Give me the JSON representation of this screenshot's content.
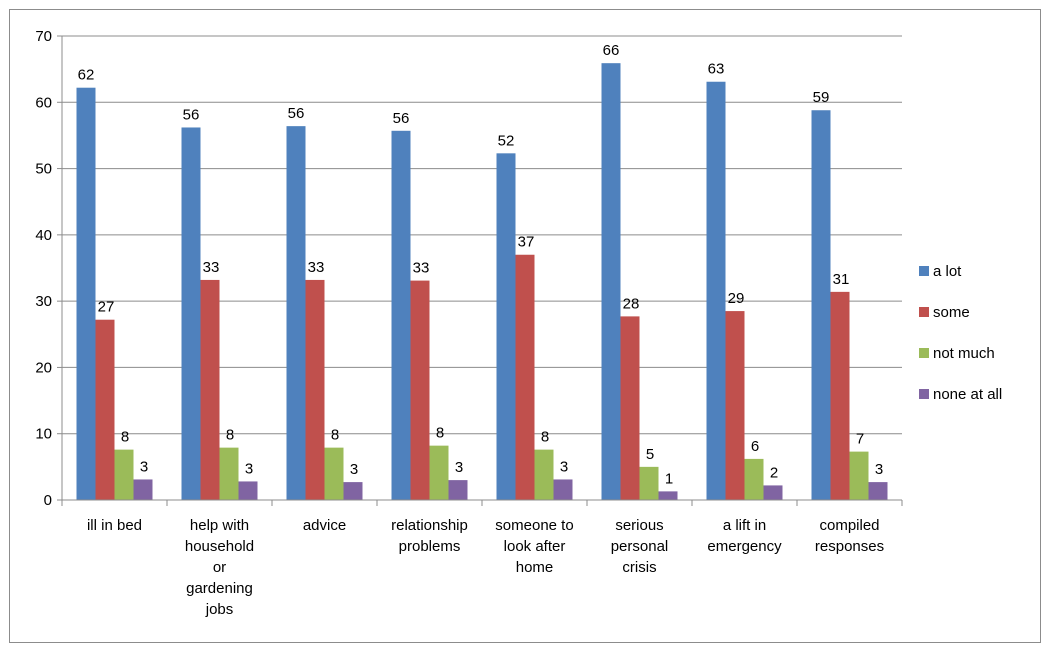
{
  "chart_data": {
    "type": "bar",
    "categories": [
      [
        "ill in bed"
      ],
      [
        "help with",
        "household",
        "or",
        "gardening",
        "jobs"
      ],
      [
        "advice"
      ],
      [
        "relationship",
        "problems"
      ],
      [
        "someone to",
        "look after",
        "home"
      ],
      [
        "serious",
        "personal",
        "crisis"
      ],
      [
        "a lift in",
        "emergency"
      ],
      [
        "compiled",
        "responses"
      ]
    ],
    "series": [
      {
        "name": "a lot",
        "color": "#4f81bd",
        "values": [
          62.2,
          56.2,
          56.4,
          55.7,
          52.3,
          65.9,
          63.1,
          58.8
        ],
        "labels": [
          "62",
          "56",
          "56",
          "56",
          "52",
          "66",
          "63",
          "59"
        ]
      },
      {
        "name": "some",
        "color": "#c0504d",
        "values": [
          27.2,
          33.2,
          33.2,
          33.1,
          37.0,
          27.7,
          28.5,
          31.4
        ],
        "labels": [
          "27",
          "33",
          "33",
          "33",
          "37",
          "28",
          "29",
          "31"
        ]
      },
      {
        "name": "not much",
        "color": "#9bbb59",
        "values": [
          7.6,
          7.9,
          7.9,
          8.2,
          7.6,
          5.0,
          6.2,
          7.3
        ],
        "labels": [
          "8",
          "8",
          "8",
          "8",
          "8",
          "5",
          "6",
          "7"
        ]
      },
      {
        "name": "none at all",
        "color": "#8064a2",
        "values": [
          3.1,
          2.8,
          2.7,
          3.0,
          3.1,
          1.3,
          2.2,
          2.7
        ],
        "labels": [
          "3",
          "3",
          "3",
          "3",
          "3",
          "1",
          "2",
          "3"
        ]
      }
    ],
    "ylim": [
      0,
      70
    ],
    "yticks": [
      "0",
      "10",
      "20",
      "30",
      "40",
      "50",
      "60",
      "70"
    ],
    "grid": true,
    "legend": "right",
    "title": "",
    "xlabel": "",
    "ylabel": ""
  }
}
